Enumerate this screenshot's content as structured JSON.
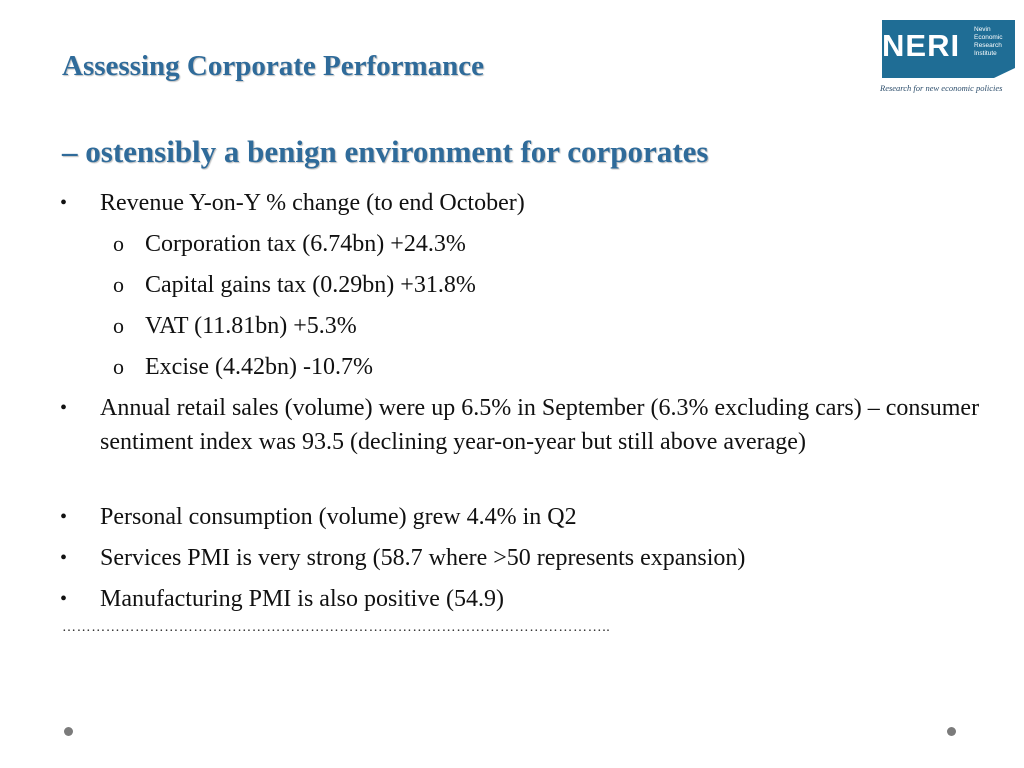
{
  "title": "Assessing Corporate Performance",
  "subtitle": "– ostensibly a benign environment for corporates",
  "logo": {
    "name": "NERI",
    "lines": [
      "Nevin",
      "Economic",
      "Research",
      "Institute"
    ],
    "tagline": "Research for new economic policies",
    "color": "#1f6d95"
  },
  "bullets": [
    {
      "text": "Revenue Y-on-Y % change (to end October)",
      "sub": [
        "Corporation tax (6.74bn) +24.3%",
        "Capital gains tax (0.29bn) +31.8%",
        "VAT (11.81bn) +5.3%",
        "Excise (4.42bn) -10.7%"
      ]
    },
    {
      "text": "Annual retail sales (volume) were up 6.5% in September (6.3% excluding cars) – consumer sentiment index was 93.5 (declining year-on-year but still above average)"
    },
    {
      "text": "Personal consumption (volume) grew 4.4% in Q2"
    },
    {
      "text": "Services PMI is very strong (58.7 where >50 represents expansion)"
    },
    {
      "text": "Manufacturing PMI is also positive (54.9)"
    }
  ],
  "bullet_char": "•",
  "sub_bullet_char": "o",
  "dots": "…………………………………………………………………………………………………..",
  "colors": {
    "title": "#2f6b9a",
    "text": "#111111",
    "nav_dot": "#7b7b7b"
  }
}
